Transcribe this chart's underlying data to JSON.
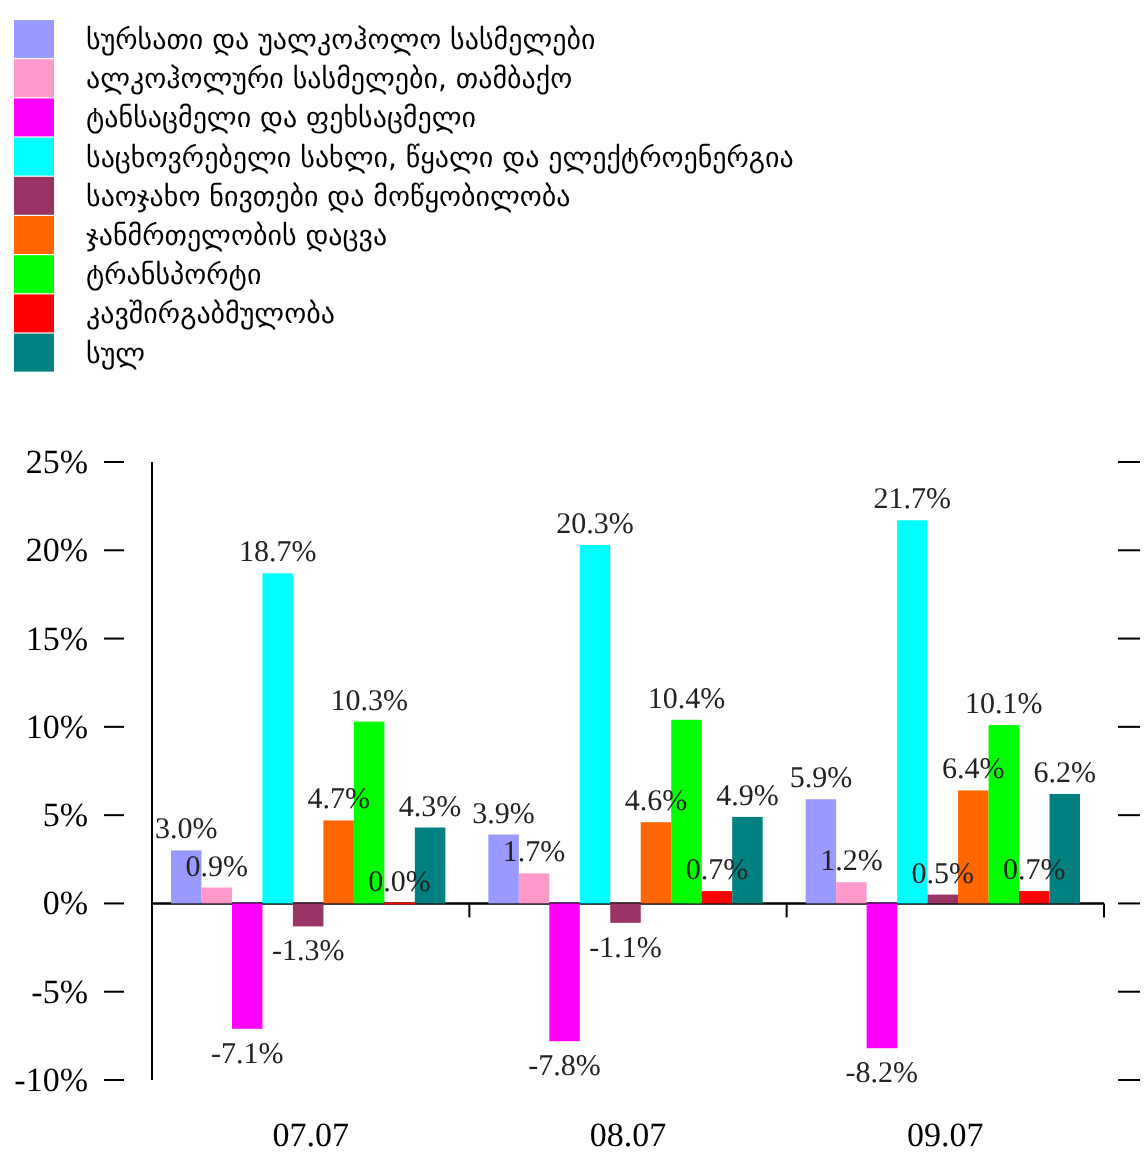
{
  "chart_data": {
    "type": "bar",
    "categories": [
      "07.07",
      "08.07",
      "09.07"
    ],
    "series": [
      {
        "name": "სურსათი და უალკოჰოლო სასმელები",
        "color": "#9999ff",
        "values": [
          3.0,
          3.9,
          5.9
        ],
        "value_labels": [
          "3.0%",
          "3.9%",
          "5.9%"
        ]
      },
      {
        "name": "ალკოჰოლური სასმელები, თამბაქო",
        "color": "#ff99cc",
        "values": [
          0.9,
          1.7,
          1.2
        ],
        "value_labels": [
          "0.9%",
          "1.7%",
          "1.2%"
        ]
      },
      {
        "name": "ტანსაცმელი და ფეხსაცმელი",
        "color": "#ff00ff",
        "values": [
          -7.1,
          -7.8,
          -8.2
        ],
        "value_labels": [
          "-7.1%",
          "-7.8%",
          "-8.2%"
        ]
      },
      {
        "name": "საცხოვრებელი სახლი, წყალი და ელექტროენერგია",
        "color": "#00ffff",
        "values": [
          18.7,
          20.3,
          21.7
        ],
        "value_labels": [
          "18.7%",
          "20.3%",
          "21.7%"
        ]
      },
      {
        "name": "საოჯახო ნივთები და მოწყობილობა",
        "color": "#993366",
        "values": [
          -1.3,
          -1.1,
          0.5
        ],
        "value_labels": [
          "-1.3%",
          "-1.1%",
          "0.5%"
        ]
      },
      {
        "name": "ჯანმრთელობის დაცვა",
        "color": "#ff6600",
        "values": [
          4.7,
          4.6,
          6.4
        ],
        "value_labels": [
          "4.7%",
          "4.6%",
          "6.4%"
        ]
      },
      {
        "name": "ტრანსპორტი",
        "color": "#00ff00",
        "values": [
          10.3,
          10.4,
          10.1
        ],
        "value_labels": [
          "10.3%",
          "10.4%",
          "10.1%"
        ]
      },
      {
        "name": "კავშირგაბმულობა",
        "color": "#ff0000",
        "values": [
          0.0,
          0.7,
          0.7
        ],
        "value_labels": [
          "0.0%",
          "0.7%",
          "0.7%"
        ]
      },
      {
        "name": "სულ",
        "color": "#008080",
        "values": [
          4.3,
          4.9,
          6.2
        ],
        "value_labels": [
          "4.3%",
          "4.9%",
          "6.2%"
        ]
      }
    ],
    "ylim": [
      -10,
      25
    ],
    "yticks": [
      {
        "value": -10,
        "label": "-10%"
      },
      {
        "value": -5,
        "label": "-5%"
      },
      {
        "value": 0,
        "label": "0%"
      },
      {
        "value": 5,
        "label": "5%"
      },
      {
        "value": 10,
        "label": "10%"
      },
      {
        "value": 15,
        "label": "15%"
      },
      {
        "value": 20,
        "label": "20%"
      },
      {
        "value": 25,
        "label": "25%"
      }
    ],
    "legend": "top left"
  }
}
